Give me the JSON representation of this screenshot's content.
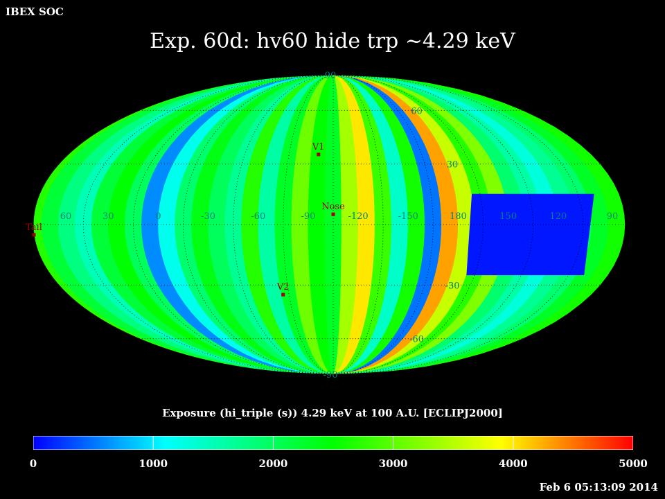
{
  "header": {
    "org": "IBEX SOC",
    "title": "Exp.   60d: hv60 hide trp ~4.29 keV"
  },
  "colorbar": {
    "title": "Exposure (hi_triple (s))  4.29 keV at 100 A.U. [ECLIPJ2000]",
    "min": 0,
    "max": 5000,
    "ticks": [
      "0",
      "1000",
      "2000",
      "3000",
      "4000",
      "5000"
    ],
    "colors": [
      "#0000ff",
      "#00ffff",
      "#00ff00",
      "#ffff00",
      "#ff0000"
    ]
  },
  "timestamp": "Feb  6 05:13:09 2014",
  "chart_data": {
    "type": "heatmap",
    "projection": "Mollweide (ecliptic)",
    "title": "Exp.   60d: hv60 hide trp ~4.29 keV",
    "value_label": "Exposure (hi_triple (s))  4.29 keV at 100 A.U. [ECLIPJ2000]",
    "vmin": 0,
    "vmax": 5000,
    "grid": true,
    "lon_labels": [
      "60",
      "30",
      "0",
      "-30",
      "-60",
      "-90",
      "-120",
      "-150",
      "180",
      "150",
      "120",
      "90"
    ],
    "lat_labels": [
      "90",
      "60",
      "30",
      "-30",
      "-60",
      "-90"
    ],
    "markers": [
      {
        "name": "V1",
        "lon": -95,
        "lat": 35
      },
      {
        "name": "Nose",
        "lon": -105,
        "lat": 5
      },
      {
        "name": "V2",
        "lon": -71,
        "lat": -35
      },
      {
        "name": "Tail",
        "lon": 75,
        "lat": -5
      }
    ],
    "strip_exposure": [
      {
        "lon": 85,
        "value": 2600
      },
      {
        "lon": 75,
        "value": 2700
      },
      {
        "lon": 65,
        "value": 2200
      },
      {
        "lon": 55,
        "value": 1800
      },
      {
        "lon": 45,
        "value": 1500
      },
      {
        "lon": 35,
        "value": 2200
      },
      {
        "lon": 25,
        "value": 2500
      },
      {
        "lon": 15,
        "value": 2000
      },
      {
        "lon": 5,
        "value": 600
      },
      {
        "lon": -5,
        "value": 1200
      },
      {
        "lon": -15,
        "value": 1900
      },
      {
        "lon": -25,
        "value": 2400
      },
      {
        "lon": -35,
        "value": 2000
      },
      {
        "lon": -45,
        "value": 1700
      },
      {
        "lon": -55,
        "value": 2700
      },
      {
        "lon": -65,
        "value": 1600
      },
      {
        "lon": -75,
        "value": 2300
      },
      {
        "lon": -85,
        "value": 3100
      },
      {
        "lon": -95,
        "value": 2500
      },
      {
        "lon": -105,
        "value": 2300
      },
      {
        "lon": -115,
        "value": 3400
      },
      {
        "lon": -125,
        "value": 4000
      },
      {
        "lon": -135,
        "value": 2800
      },
      {
        "lon": -145,
        "value": 1400
      },
      {
        "lon": -155,
        "value": 2600
      },
      {
        "lon": -165,
        "value": 500
      },
      {
        "lon": -175,
        "value": 4300
      },
      {
        "lon": 175,
        "value": 3600
      },
      {
        "lon": 165,
        "value": 2700
      },
      {
        "lon": 155,
        "value": 3200
      },
      {
        "lon": 145,
        "value": 1900
      },
      {
        "lon": 135,
        "value": 1600
      },
      {
        "lon": 125,
        "value": 1300
      },
      {
        "lon": 115,
        "value": 1700
      },
      {
        "lon": 105,
        "value": 1900
      },
      {
        "lon": 95,
        "value": 2300
      }
    ],
    "low_exposure_patch": {
      "lon_range": [
        95,
        170
      ],
      "lat_range": [
        -25,
        15
      ],
      "value": 100
    }
  }
}
